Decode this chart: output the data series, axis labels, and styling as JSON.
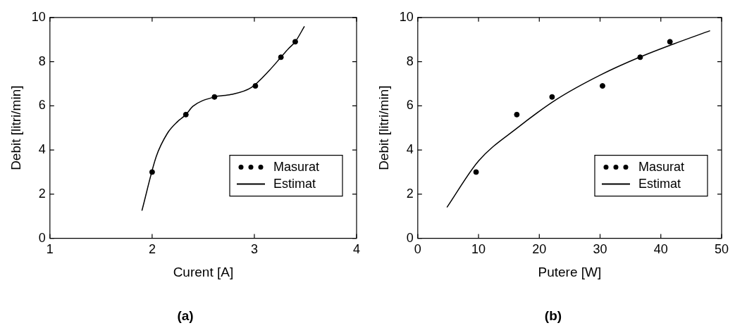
{
  "chart_data": [
    {
      "type": "scatter",
      "xlabel": "Curent [A]",
      "ylabel": "Debit [litri/min]",
      "xlim": [
        1,
        4
      ],
      "xticks": [
        1,
        2,
        3,
        4
      ],
      "ylim": [
        0,
        10
      ],
      "yticks": [
        0,
        2,
        4,
        6,
        8,
        10
      ],
      "legend": "bottom right",
      "grid": false,
      "annotations": [
        "(a)"
      ],
      "series": [
        {
          "name": "Masurat",
          "type": "scatter",
          "marker": "circle",
          "color": "#000000",
          "x": [
            2.0,
            2.33,
            2.61,
            3.01,
            3.26,
            3.4
          ],
          "values": [
            3.0,
            5.6,
            6.4,
            6.9,
            8.2,
            8.9
          ]
        },
        {
          "name": "Estimat",
          "type": "line",
          "marker": "none",
          "color": "#000000",
          "x": [
            1.9,
            2.04,
            2.15,
            2.25,
            2.33,
            2.4,
            2.61,
            2.77,
            2.97,
            3.15,
            3.26,
            3.33,
            3.4,
            3.49
          ],
          "values": [
            1.25,
            3.7,
            4.76,
            5.29,
            5.6,
            5.98,
            6.4,
            6.51,
            6.83,
            7.62,
            8.2,
            8.57,
            8.9,
            9.6
          ]
        }
      ]
    },
    {
      "type": "scatter",
      "xlabel": "Putere [W]",
      "ylabel": "Debit [litri/min]",
      "xlim": [
        0,
        50
      ],
      "xticks": [
        0,
        10,
        20,
        30,
        40,
        50
      ],
      "ylim": [
        0,
        10
      ],
      "yticks": [
        0,
        2,
        4,
        6,
        8,
        10
      ],
      "legend": "bottom right",
      "grid": false,
      "annotations": [
        "(b)"
      ],
      "series": [
        {
          "name": "Masurat",
          "type": "scatter",
          "marker": "circle",
          "color": "#000000",
          "x": [
            9.6,
            16.3,
            22.1,
            30.4,
            36.6,
            41.5
          ],
          "values": [
            3.0,
            5.6,
            6.4,
            6.9,
            8.2,
            8.9
          ]
        },
        {
          "name": "Estimat",
          "type": "line",
          "marker": "none",
          "color": "#000000",
          "x": [
            4.8,
            10.0,
            16.4,
            22.9,
            30.1,
            36.5,
            42.1,
            48.1
          ],
          "values": [
            1.4,
            3.5,
            5.0,
            6.3,
            7.4,
            8.2,
            8.8,
            9.4
          ]
        }
      ]
    }
  ]
}
